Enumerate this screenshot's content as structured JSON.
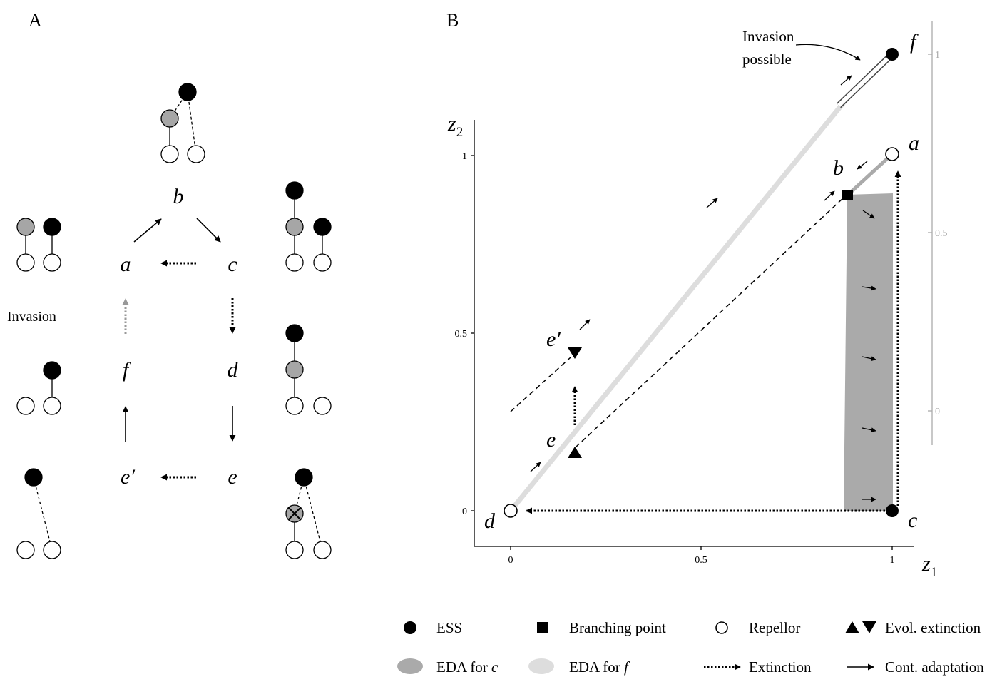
{
  "panel_a": {
    "label": "A",
    "states": {
      "a": "a",
      "b": "b",
      "c": "c",
      "d": "d",
      "e": "e",
      "e_prime": "e′",
      "f": "f"
    },
    "invasion_label": "Invasion"
  },
  "panel_b": {
    "label": "B",
    "x_axis_label": "z",
    "x_axis_sub": "1",
    "y_axis_label": "z",
    "y_axis_sub": "2",
    "x_ticks": [
      "0",
      "0.5",
      "1"
    ],
    "y_ticks": [
      "0",
      "0.5",
      "1"
    ],
    "right_ticks": [
      "0",
      "0.5",
      "1"
    ],
    "points": {
      "a": "a",
      "b": "b",
      "c": "c",
      "d": "d",
      "e": "e",
      "e_prime": "e′",
      "f": "f"
    },
    "invasion_note_line1": "Invasion",
    "invasion_note_line2": "possible"
  },
  "legend": {
    "ess": "ESS",
    "branching": "Branching point",
    "repellor": "Repellor",
    "evol_extinction": "Evol. extinction",
    "eda_c_prefix": "EDA for ",
    "eda_c_var": "c",
    "eda_f_prefix": "EDA for ",
    "eda_f_var": "f",
    "extinction": "Extinction",
    "cont_adaptation": "Cont. adaptation"
  },
  "colors": {
    "black": "#000000",
    "gray_node": "#a6a6a6",
    "eda_c": "#aaaaaa",
    "eda_f": "#dddddd",
    "right_axis": "#aaaaaa"
  }
}
